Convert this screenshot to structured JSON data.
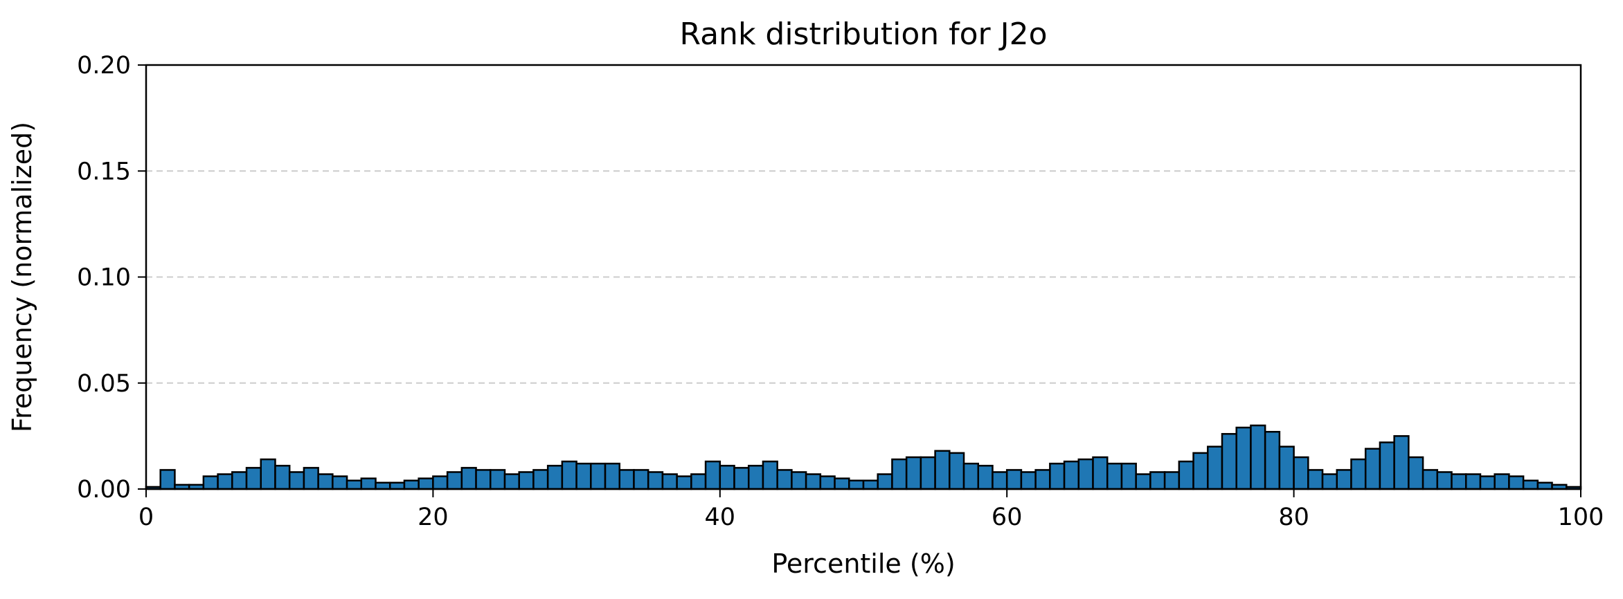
{
  "chart_data": {
    "type": "bar",
    "title": "Rank distribution for J2o",
    "xlabel": "Percentile (%)",
    "ylabel": "Frequency (normalized)",
    "xlim": [
      0,
      100
    ],
    "ylim": [
      0,
      0.2
    ],
    "xticks": [
      0,
      20,
      40,
      60,
      80,
      100
    ],
    "xtick_labels": [
      "0",
      "20",
      "40",
      "60",
      "80",
      "100"
    ],
    "yticks": [
      0,
      0.05,
      0.1,
      0.15,
      0.2
    ],
    "ytick_labels": [
      "0.00",
      "0.05",
      "0.10",
      "0.15",
      "0.20"
    ],
    "grid": "y-dashed",
    "bar_color": "#1f77b4",
    "bin_width": 1,
    "bin_starts": [
      0,
      1,
      2,
      3,
      4,
      5,
      6,
      7,
      8,
      9,
      10,
      11,
      12,
      13,
      14,
      15,
      16,
      17,
      18,
      19,
      20,
      21,
      22,
      23,
      24,
      25,
      26,
      27,
      28,
      29,
      30,
      31,
      32,
      33,
      34,
      35,
      36,
      37,
      38,
      39,
      40,
      41,
      42,
      43,
      44,
      45,
      46,
      47,
      48,
      49,
      50,
      51,
      52,
      53,
      54,
      55,
      56,
      57,
      58,
      59,
      60,
      61,
      62,
      63,
      64,
      65,
      66,
      67,
      68,
      69,
      70,
      71,
      72,
      73,
      74,
      75,
      76,
      77,
      78,
      79,
      80,
      81,
      82,
      83,
      84,
      85,
      86,
      87,
      88,
      89,
      90,
      91,
      92,
      93,
      94,
      95,
      96,
      97,
      98,
      99
    ],
    "values": [
      0.001,
      0.009,
      0.002,
      0.002,
      0.006,
      0.007,
      0.008,
      0.01,
      0.014,
      0.011,
      0.008,
      0.01,
      0.007,
      0.006,
      0.004,
      0.005,
      0.003,
      0.003,
      0.004,
      0.005,
      0.006,
      0.008,
      0.01,
      0.009,
      0.009,
      0.007,
      0.008,
      0.009,
      0.011,
      0.013,
      0.012,
      0.012,
      0.012,
      0.009,
      0.009,
      0.008,
      0.007,
      0.006,
      0.007,
      0.013,
      0.011,
      0.01,
      0.011,
      0.013,
      0.009,
      0.008,
      0.007,
      0.006,
      0.005,
      0.004,
      0.004,
      0.007,
      0.014,
      0.015,
      0.015,
      0.018,
      0.017,
      0.012,
      0.011,
      0.008,
      0.009,
      0.008,
      0.009,
      0.012,
      0.013,
      0.014,
      0.015,
      0.012,
      0.012,
      0.007,
      0.008,
      0.008,
      0.013,
      0.017,
      0.02,
      0.026,
      0.029,
      0.03,
      0.027,
      0.02,
      0.015,
      0.009,
      0.007,
      0.009,
      0.014,
      0.019,
      0.022,
      0.025,
      0.015,
      0.009,
      0.008,
      0.007,
      0.007,
      0.006,
      0.007,
      0.006,
      0.004,
      0.003,
      0.002,
      0.001
    ]
  }
}
